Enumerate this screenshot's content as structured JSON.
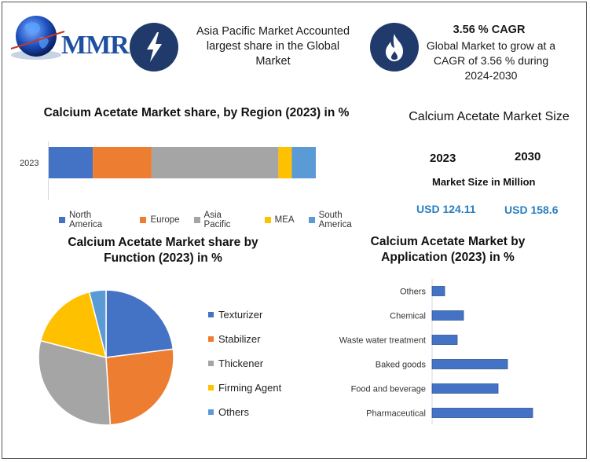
{
  "header": {
    "logo_text": "MMR",
    "region_text": "Asia Pacific Market Accounted largest share in the Global Market",
    "cagr_title": "3.56 % CAGR",
    "cagr_text": "Global Market to grow at a CAGR of 3.56 % during 2024-2030"
  },
  "market_size": {
    "title": "Calcium Acetate Market Size",
    "year_1": "2023",
    "year_2": "2030",
    "subtitle": "Market Size in Million",
    "value_1": "USD 124.11",
    "value_2": "USD 158.6"
  },
  "colors": {
    "north_america": "#4472c4",
    "europe": "#ed7d31",
    "asia_pacific": "#a5a5a5",
    "mea": "#ffc000",
    "south_america": "#5b9bd5",
    "app_bar": "#4472c4",
    "icon_bg": "#1f3a6b"
  },
  "chart_data": [
    {
      "type": "bar",
      "orientation": "horizontal-stacked",
      "title": "Calcium Acetate Market share, by Region (2023) in %",
      "categories": [
        "2023"
      ],
      "series": [
        {
          "name": "North America",
          "values": [
            16.5
          ]
        },
        {
          "name": "Europe",
          "values": [
            22
          ]
        },
        {
          "name": "Asia Pacific",
          "values": [
            47.5
          ]
        },
        {
          "name": "MEA",
          "values": [
            5
          ]
        },
        {
          "name": "South America",
          "values": [
            9
          ]
        }
      ],
      "legend": "bottom"
    },
    {
      "type": "pie",
      "title": "Calcium Acetate Market share by Function (2023) in %",
      "labels": [
        "Texturizer",
        "Stabilizer",
        "Thickener",
        "Firming Agent",
        "Others"
      ],
      "values": [
        23,
        26,
        30,
        17,
        4
      ],
      "legend": "right"
    },
    {
      "type": "bar",
      "orientation": "horizontal",
      "title": "Calcium Acetate Market by Application (2023) in %",
      "categories": [
        "Others",
        "Chemical",
        "Waste water treatment",
        "Baked goods",
        "Food and beverage",
        "Pharmaceutical"
      ],
      "values": [
        2,
        5,
        4,
        12,
        10.5,
        16
      ],
      "xlim": [
        0,
        20
      ]
    }
  ]
}
